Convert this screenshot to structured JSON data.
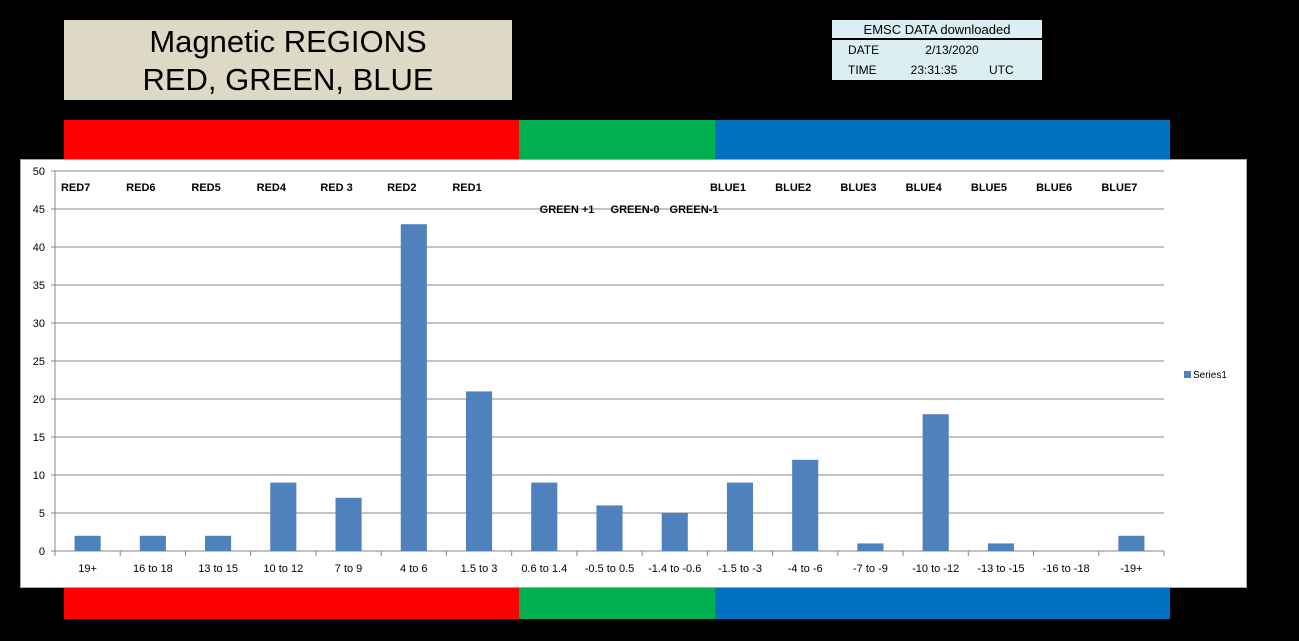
{
  "header": {
    "title_line1": "Magnetic REGIONS",
    "title_line2": "RED, GREEN, BLUE"
  },
  "info": {
    "heading": "EMSC DATA downloaded",
    "date_label": "DATE",
    "date_value": "2/13/2020",
    "time_label": "TIME",
    "time_value": "23:31:35",
    "tz": "UTC"
  },
  "bands": [
    {
      "name": "red",
      "color": "#ff0000",
      "span": 7
    },
    {
      "name": "green",
      "color": "#00b050",
      "span": 3
    },
    {
      "name": "blue",
      "color": "#0070c0",
      "span": 7
    }
  ],
  "chart_data": {
    "type": "bar",
    "categories": [
      "19+",
      "16 to 18",
      "13 to 15",
      "10 to 12",
      "7 to 9",
      "4 to 6",
      "1.5 to 3",
      "0.6 to 1.4",
      "-0.5 to 0.5",
      "-1.4 to -0.6",
      "-1.5 to -3",
      "-4 to -6",
      "-7 to -9",
      "-10 to -12",
      "-13 to -15",
      "-16 to -18",
      "-19+"
    ],
    "series": [
      {
        "name": "Series1",
        "color": "#4f81bd",
        "values": [
          2,
          2,
          2,
          9,
          7,
          43,
          21,
          9,
          6,
          5,
          9,
          12,
          1,
          18,
          1,
          0,
          2
        ]
      }
    ],
    "ylim": [
      0,
      50
    ],
    "yticks": [
      0,
      5,
      10,
      15,
      20,
      25,
      30,
      35,
      40,
      45,
      50
    ],
    "grid": true,
    "legend": "right",
    "annotations_top": [
      "RED7",
      "RED6",
      "RED5",
      "RED4",
      "RED 3",
      "RED2",
      "RED1",
      "",
      "",
      "",
      "BLUE1",
      "BLUE2",
      "BLUE3",
      "BLUE4",
      "BLUE5",
      "BLUE6",
      "BLUE7"
    ],
    "annotations_green": [
      "GREEN +1",
      "GREEN-0",
      "GREEN-1"
    ]
  }
}
